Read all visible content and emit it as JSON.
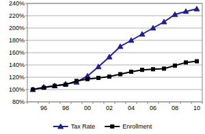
{
  "chart_data": {
    "type": "line",
    "categories": [
      null,
      "96",
      null,
      "98",
      null,
      "00",
      null,
      "02",
      null,
      "04",
      null,
      "06",
      null,
      "08",
      null,
      "10"
    ],
    "series": [
      {
        "name": "Tax Rate",
        "color": "#1f1f8f",
        "marker": "triangle",
        "values": [
          100,
          104,
          106,
          109,
          112,
          122,
          137,
          153,
          170,
          180,
          190,
          200,
          210,
          222,
          227,
          231
        ]
      },
      {
        "name": "Enrollment",
        "color": "#000000",
        "marker": "square",
        "values": [
          100,
          103,
          106,
          108,
          114,
          117,
          119,
          121,
          125,
          129,
          132,
          133,
          134,
          139,
          144,
          146
        ]
      }
    ],
    "ylim": [
      80,
      240
    ],
    "yticks": [
      {
        "value": 80,
        "label": "80%"
      },
      {
        "value": 100,
        "label": "100%"
      },
      {
        "value": 120,
        "label": "120%"
      },
      {
        "value": 140,
        "label": "140%"
      },
      {
        "value": 160,
        "label": "160%"
      },
      {
        "value": 180,
        "label": "180%"
      },
      {
        "value": 200,
        "label": "200%"
      },
      {
        "value": 220,
        "label": "220%"
      },
      {
        "value": 240,
        "label": "240%"
      }
    ],
    "grid": true,
    "legend": "bottom"
  }
}
